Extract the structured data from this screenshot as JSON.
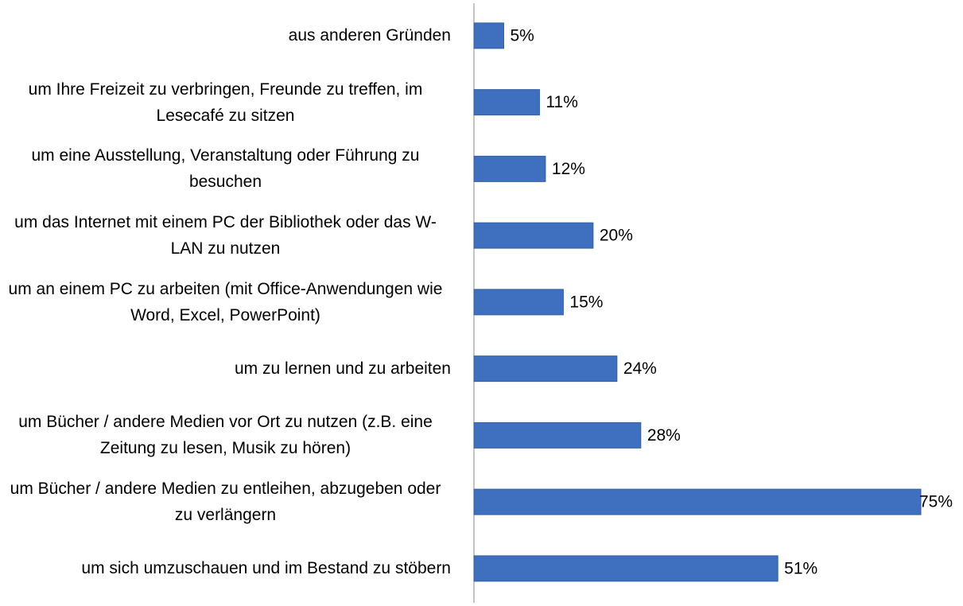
{
  "chart_data": {
    "type": "bar",
    "orientation": "horizontal",
    "color": "#3f70bf",
    "categories": [
      "aus anderen Gründen",
      "um Ihre Freizeit zu verbringen, Freunde zu treffen, im Lesecafé zu sitzen",
      "um eine Ausstellung, Veranstaltung oder Führung zu besuchen",
      "um das Internet mit einem PC der Bibliothek oder das W-LAN zu nutzen",
      "um an einem PC zu arbeiten (mit Office-Anwendungen wie Word, Excel, PowerPoint)",
      "um zu lernen und zu arbeiten",
      "um Bücher / andere Medien vor Ort zu nutzen (z.B. eine Zeitung zu lesen, Musik zu hören)",
      "um Bücher / andere Medien zu entleihen, abzugeben oder zu verlängern",
      "um sich umzuschauen und im Bestand zu stöbern"
    ],
    "values": [
      5,
      11,
      12,
      20,
      15,
      24,
      28,
      75,
      51
    ],
    "value_labels": [
      "5%",
      "11%",
      "12%",
      "20%",
      "15%",
      "24%",
      "28%",
      "75%",
      "51%"
    ]
  }
}
